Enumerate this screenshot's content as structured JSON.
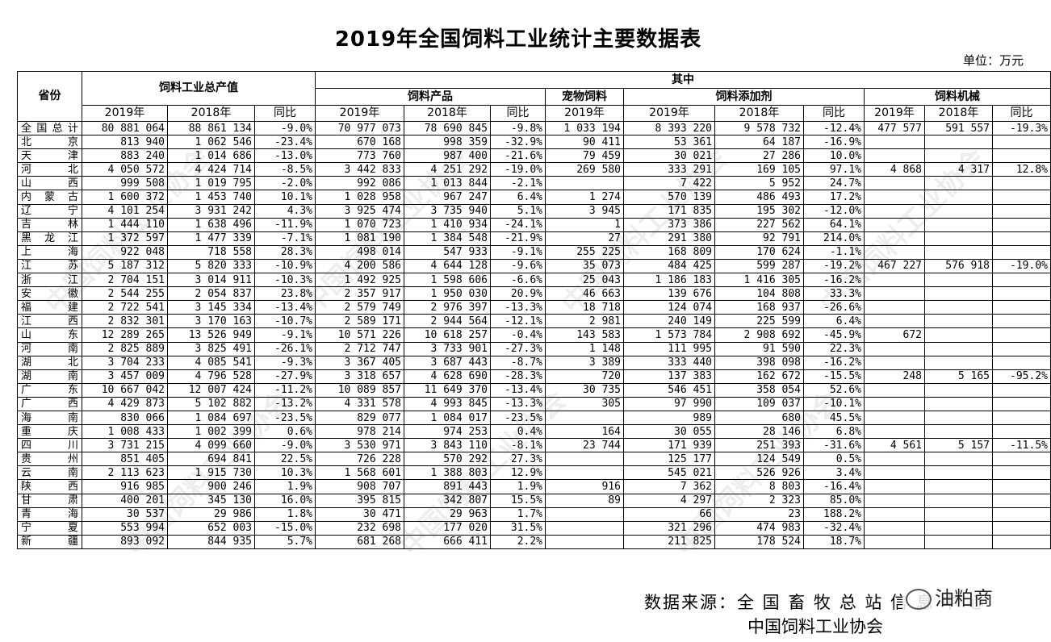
{
  "title": "2019年全国饲料工业统计主要数据表",
  "unit": "单位：万元",
  "header": {
    "province": "省份",
    "total_output": "饲料工业总产值",
    "of_which": "其中",
    "feed_products": "饲料产品",
    "pet_feed": "宠物饲料",
    "feed_additives": "饲料添加剂",
    "feed_machinery": "饲料机械",
    "y2019": "2019年",
    "y2018": "2018年",
    "yoy": "同比"
  },
  "rows": [
    [
      "全国总计",
      "80 881 064",
      "88 861 134",
      "-9.0%",
      "70 977 073",
      "78 690 845",
      "-9.8%",
      "1 033 194",
      "8 393 220",
      "9 578 732",
      "-12.4%",
      "477 577",
      "591 557",
      "-19.3%"
    ],
    [
      "北　京",
      "813 940",
      "1 062 546",
      "-23.4%",
      "670 168",
      "998 359",
      "-32.9%",
      "90 411",
      "53 361",
      "64 187",
      "-16.9%",
      "",
      "",
      ""
    ],
    [
      "天　津",
      "883 240",
      "1 014 686",
      "-13.0%",
      "773 760",
      "987 400",
      "-21.6%",
      "79 459",
      "30 021",
      "27 286",
      "10.0%",
      "",
      "",
      ""
    ],
    [
      "河　北",
      "4 050 572",
      "4 424 714",
      "-8.5%",
      "3 442 833",
      "4 251 292",
      "-19.0%",
      "269 580",
      "333 291",
      "169 105",
      "97.1%",
      "4 868",
      "4 317",
      "12.8%"
    ],
    [
      "山　西",
      "999 508",
      "1 019 795",
      "-2.0%",
      "992 086",
      "1 013 844",
      "-2.1%",
      "",
      "7 422",
      "5 952",
      "24.7%",
      "",
      "",
      ""
    ],
    [
      "内蒙古",
      "1 600 372",
      "1 453 740",
      "10.1%",
      "1 028 958",
      "967 247",
      "6.4%",
      "1 274",
      "570 139",
      "486 493",
      "17.2%",
      "",
      "",
      ""
    ],
    [
      "辽　宁",
      "4 101 254",
      "3 931 242",
      "4.3%",
      "3 925 474",
      "3 735 940",
      "5.1%",
      "3 945",
      "171 835",
      "195 302",
      "-12.0%",
      "",
      "",
      ""
    ],
    [
      "吉　林",
      "1 444 110",
      "1 638 496",
      "-11.9%",
      "1 070 723",
      "1 410 934",
      "-24.1%",
      "1",
      "373 386",
      "227 562",
      "64.1%",
      "",
      "",
      ""
    ],
    [
      "黑龙江",
      "1 372 597",
      "1 477 339",
      "-7.1%",
      "1 081 190",
      "1 384 548",
      "-21.9%",
      "27",
      "291 380",
      "92 791",
      "214.0%",
      "",
      "",
      ""
    ],
    [
      "上　海",
      "922 048",
      "718 558",
      "28.3%",
      "498 014",
      "547 933",
      "-9.1%",
      "255 225",
      "168 809",
      "170 624",
      "-1.1%",
      "",
      "",
      ""
    ],
    [
      "江　苏",
      "5 187 312",
      "5 820 333",
      "-10.9%",
      "4 200 586",
      "4 644 128",
      "-9.6%",
      "35 073",
      "484 425",
      "599 287",
      "-19.2%",
      "467 227",
      "576 918",
      "-19.0%"
    ],
    [
      "浙　江",
      "2 704 151",
      "3 014 911",
      "-10.3%",
      "1 492 925",
      "1 598 606",
      "-6.6%",
      "25 043",
      "1 186 183",
      "1 416 305",
      "-16.2%",
      "",
      "",
      ""
    ],
    [
      "安　徽",
      "2 544 255",
      "2 054 837",
      "23.8%",
      "2 357 917",
      "1 950 030",
      "20.9%",
      "46 663",
      "139 676",
      "104 808",
      "33.3%",
      "",
      "",
      ""
    ],
    [
      "福　建",
      "2 722 541",
      "3 145 334",
      "-13.4%",
      "2 579 749",
      "2 976 397",
      "-13.3%",
      "18 718",
      "124 074",
      "168 937",
      "-26.6%",
      "",
      "",
      ""
    ],
    [
      "江　西",
      "2 832 301",
      "3 170 163",
      "-10.7%",
      "2 589 171",
      "2 944 564",
      "-12.1%",
      "2 981",
      "240 149",
      "225 599",
      "6.4%",
      "",
      "",
      ""
    ],
    [
      "山　东",
      "12 289 265",
      "13 526 949",
      "-9.1%",
      "10 571 226",
      "10 618 257",
      "-0.4%",
      "143 583",
      "1 573 784",
      "2 908 692",
      "-45.9%",
      "672",
      "",
      ""
    ],
    [
      "河　南",
      "2 825 889",
      "3 825 491",
      "-26.1%",
      "2 712 747",
      "3 733 901",
      "-27.3%",
      "1 148",
      "111 995",
      "91 590",
      "22.3%",
      "",
      "",
      ""
    ],
    [
      "湖　北",
      "3 704 233",
      "4 085 541",
      "-9.3%",
      "3 367 405",
      "3 687 443",
      "-8.7%",
      "3 389",
      "333 440",
      "398 098",
      "-16.2%",
      "",
      "",
      ""
    ],
    [
      "湖　南",
      "3 457 009",
      "4 796 528",
      "-27.9%",
      "3 318 657",
      "4 628 690",
      "-28.3%",
      "720",
      "137 383",
      "162 672",
      "-15.5%",
      "248",
      "5 165",
      "-95.2%"
    ],
    [
      "广　东",
      "10 667 042",
      "12 007 424",
      "-11.2%",
      "10 089 857",
      "11 649 370",
      "-13.4%",
      "30 735",
      "546 451",
      "358 054",
      "52.6%",
      "",
      "",
      ""
    ],
    [
      "广　西",
      "4 429 873",
      "5 102 882",
      "-13.2%",
      "4 331 578",
      "4 993 845",
      "-13.3%",
      "305",
      "97 990",
      "109 037",
      "-10.1%",
      "",
      "",
      ""
    ],
    [
      "海　南",
      "830 066",
      "1 084 697",
      "-23.5%",
      "829 077",
      "1 084 017",
      "-23.5%",
      "",
      "989",
      "680",
      "45.5%",
      "",
      "",
      ""
    ],
    [
      "重　庆",
      "1 008 433",
      "1 002 399",
      "0.6%",
      "978 214",
      "974 253",
      "0.4%",
      "164",
      "30 055",
      "28 146",
      "6.8%",
      "",
      "",
      ""
    ],
    [
      "四　川",
      "3 731 215",
      "4 099 660",
      "-9.0%",
      "3 530 971",
      "3 843 110",
      "-8.1%",
      "23 744",
      "171 939",
      "251 393",
      "-31.6%",
      "4 561",
      "5 157",
      "-11.5%"
    ],
    [
      "贵　州",
      "851 405",
      "694 841",
      "22.5%",
      "726 228",
      "570 292",
      "27.3%",
      "",
      "125 177",
      "124 549",
      "0.5%",
      "",
      "",
      ""
    ],
    [
      "云　南",
      "2 113 623",
      "1 915 730",
      "10.3%",
      "1 568 601",
      "1 388 803",
      "12.9%",
      "",
      "545 021",
      "526 926",
      "3.4%",
      "",
      "",
      ""
    ],
    [
      "陕　西",
      "916 985",
      "900 246",
      "1.9%",
      "908 707",
      "891 443",
      "1.9%",
      "916",
      "7 362",
      "8 803",
      "-16.4%",
      "",
      "",
      ""
    ],
    [
      "甘　肃",
      "400 201",
      "345 130",
      "16.0%",
      "395 815",
      "342 807",
      "15.5%",
      "89",
      "4 297",
      "2 323",
      "85.0%",
      "",
      "",
      ""
    ],
    [
      "青　海",
      "30 537",
      "29 986",
      "1.8%",
      "30 471",
      "29 963",
      "1.7%",
      "",
      "66",
      "23",
      "188.2%",
      "",
      "",
      ""
    ],
    [
      "宁　夏",
      "553 994",
      "652 003",
      "-15.0%",
      "232 698",
      "177 020",
      "31.5%",
      "",
      "321 296",
      "474 983",
      "-32.4%",
      "",
      "",
      ""
    ],
    [
      "新　疆",
      "893 092",
      "844 935",
      "5.7%",
      "681 268",
      "666 411",
      "2.2%",
      "",
      "211 825",
      "178 524",
      "18.7%",
      "",
      "",
      ""
    ]
  ],
  "source": {
    "label": "数据来源：全 国 畜 牧 总 站 信 息 中 心",
    "line2": "中国饲料工业协会"
  },
  "brand": "油粕商",
  "watermark_text": "中国饲料工业协会"
}
